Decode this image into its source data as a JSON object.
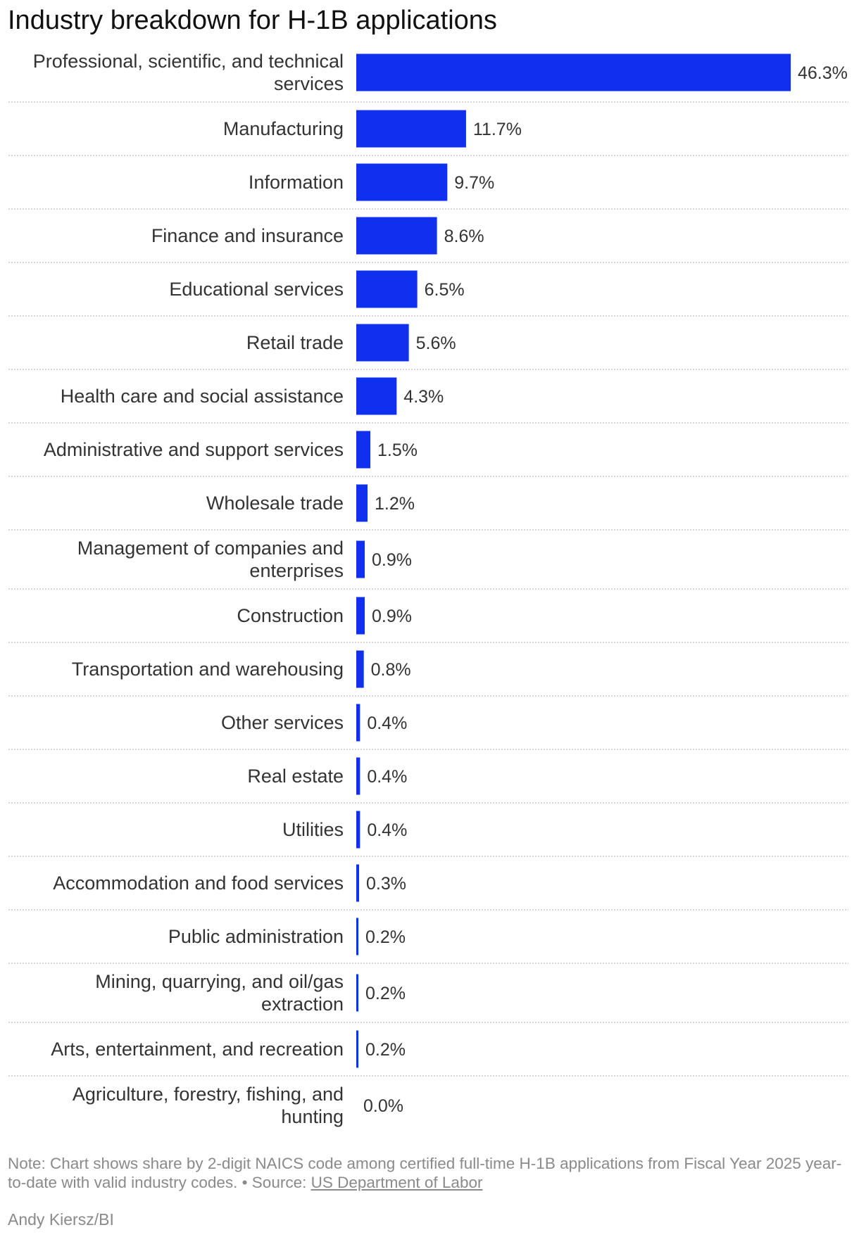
{
  "chart_data": {
    "type": "bar",
    "orientation": "horizontal",
    "title": "Industry breakdown for H-1B applications",
    "categories": [
      "Professional, scientific, and technical services",
      "Manufacturing",
      "Information",
      "Finance and insurance",
      "Educational services",
      "Retail trade",
      "Health care and social assistance",
      "Administrative and support services",
      "Wholesale trade",
      "Management of companies and enterprises",
      "Construction",
      "Transportation and warehousing",
      "Other services",
      "Real estate",
      "Utilities",
      "Accommodation and food services",
      "Public administration",
      "Mining, quarrying, and oil/gas extraction",
      "Arts, entertainment, and recreation",
      "Agriculture, forestry, fishing, and hunting"
    ],
    "values": [
      46.3,
      11.7,
      9.7,
      8.6,
      6.5,
      5.6,
      4.3,
      1.5,
      1.2,
      0.9,
      0.9,
      0.8,
      0.4,
      0.4,
      0.4,
      0.3,
      0.2,
      0.2,
      0.2,
      0.0
    ],
    "value_labels": [
      "46.3%",
      "11.7%",
      "9.7%",
      "8.6%",
      "6.5%",
      "5.6%",
      "4.3%",
      "1.5%",
      "1.2%",
      "0.9%",
      "0.9%",
      "0.8%",
      "0.4%",
      "0.4%",
      "0.4%",
      "0.3%",
      "0.2%",
      "0.2%",
      "0.2%",
      "0.0%"
    ],
    "xlim": [
      0,
      46.3
    ],
    "unit": "%",
    "bar_color": "#1030f0",
    "divider_color": "#c8c8c8",
    "grid": false,
    "legend": "none"
  },
  "note": {
    "text": "Note: Chart shows share by 2-digit NAICS code among certified full-time H-1B applications from Fiscal Year 2025 year-to-date with valid industry codes. • Source: ",
    "source_link": "US Department of Labor"
  },
  "byline": "Andy Kiersz/BI"
}
